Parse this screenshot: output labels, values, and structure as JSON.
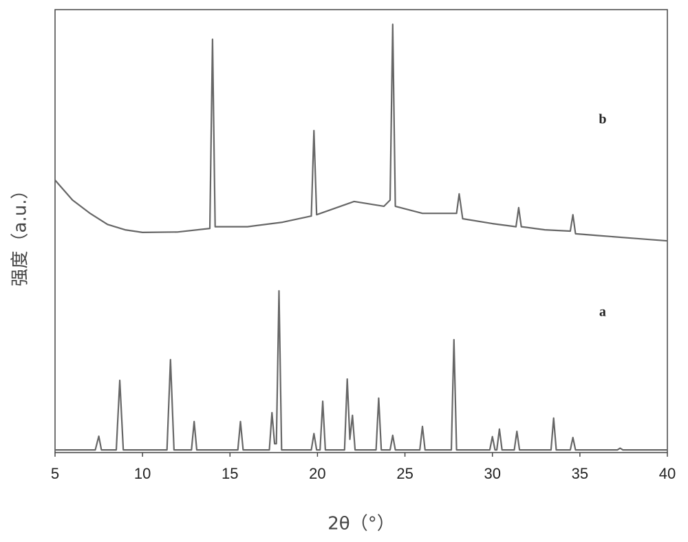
{
  "chart_data": {
    "type": "line",
    "x_label": "2θ（°）",
    "y_label": "强度（a.u.）",
    "xlim": [
      5,
      40
    ],
    "xticks": [
      5,
      10,
      15,
      20,
      25,
      30,
      35,
      40
    ],
    "ylim": [
      0,
      100
    ],
    "series": [
      {
        "name": "b",
        "color": "#666666",
        "x": [
          5,
          6,
          7,
          8,
          9,
          10,
          12,
          13.85,
          14.0,
          14.15,
          16,
          18,
          19.65,
          19.8,
          19.95,
          22.1,
          23.8,
          24.15,
          24.3,
          24.45,
          26,
          27.95,
          28.1,
          28.3,
          30,
          31.35,
          31.5,
          31.65,
          33,
          34.45,
          34.6,
          34.75,
          36,
          38,
          40
        ],
        "values": [
          61.5,
          57,
          54,
          51.5,
          50.3,
          49.7,
          49.8,
          50.6,
          93.3,
          51,
          51,
          52,
          53.4,
          72.7,
          53.7,
          56.7,
          55.6,
          57,
          96.7,
          55.6,
          54,
          54,
          58.4,
          52.8,
          51.7,
          51,
          55.3,
          51,
          50.3,
          50,
          53.7,
          49.4,
          49,
          48.4,
          47.8
        ]
      },
      {
        "name": "a",
        "color": "#666666",
        "x": [
          5,
          7.3,
          7.5,
          7.65,
          8.5,
          8.7,
          8.9,
          11.4,
          11.6,
          11.8,
          12.8,
          12.95,
          13.1,
          15.45,
          15.6,
          15.75,
          17.25,
          17.4,
          17.55,
          17.65,
          17.8,
          17.95,
          19.65,
          19.8,
          19.95,
          20.15,
          20.3,
          20.45,
          21.55,
          21.7,
          21.85,
          22.0,
          22.15,
          23.35,
          23.5,
          23.65,
          24.15,
          24.3,
          24.45,
          25.85,
          26.0,
          26.15,
          27.65,
          27.8,
          27.95,
          29.85,
          30.0,
          30.15,
          30.25,
          30.4,
          30.55,
          31.25,
          31.4,
          31.55,
          33.35,
          33.5,
          33.65,
          34.45,
          34.6,
          34.75,
          37.15,
          37.3,
          37.45,
          40
        ],
        "values": [
          0.6,
          0.6,
          3.7,
          0.6,
          0.6,
          16.3,
          0.6,
          0.6,
          21,
          0.6,
          0.6,
          7,
          0.6,
          0.6,
          7,
          0.6,
          0.6,
          9,
          2,
          2,
          36.5,
          0.6,
          0.6,
          4.3,
          0.6,
          0.6,
          11.6,
          0.6,
          0.6,
          16.6,
          3,
          8.4,
          0.6,
          0.6,
          12.3,
          0.6,
          0.6,
          3.9,
          0.6,
          0.6,
          5.9,
          0.6,
          0.6,
          25.5,
          0.6,
          0.6,
          3.6,
          0.6,
          0.6,
          5.3,
          0.6,
          0.6,
          4.8,
          0.6,
          0.6,
          7.8,
          0.6,
          0.6,
          3.4,
          0.6,
          0.6,
          1,
          0.6,
          0.6
        ]
      }
    ]
  }
}
